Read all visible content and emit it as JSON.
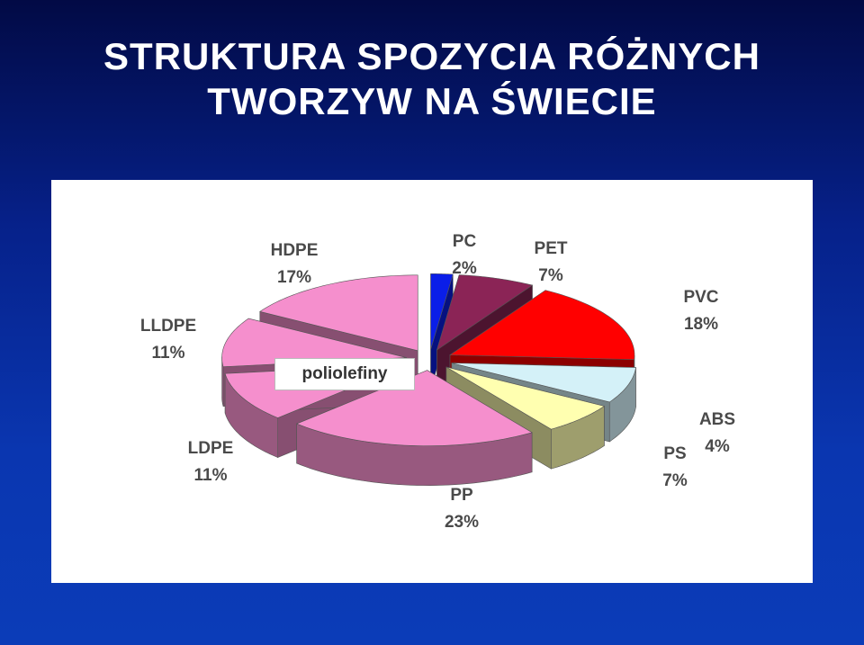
{
  "slide": {
    "title_line1": "STRUKTURA SPOZYCIA RÓŻNYCH",
    "title_line2": "TWORZYW NA ŚWIECIE"
  },
  "chart_data": {
    "type": "pie",
    "title": "",
    "group_label": "poliolefiny",
    "slices": [
      {
        "name": "PC",
        "value": 2,
        "label": "2%",
        "color": "#0a1ee8"
      },
      {
        "name": "PET",
        "value": 7,
        "label": "7%",
        "color": "#8b2456"
      },
      {
        "name": "PVC",
        "value": 18,
        "label": "18%",
        "color": "#ff0000"
      },
      {
        "name": "ABS",
        "value": 4,
        "label": "",
        "color": "#d4f1f8"
      },
      {
        "name": "ABS",
        "value": 4,
        "label": "4%",
        "color": "#d4f1f8"
      },
      {
        "name": "PS",
        "value": 7,
        "label": "7%",
        "color": "#ffffb0"
      },
      {
        "name": "PP",
        "value": 23,
        "label": "23%",
        "color": "#f58fcd"
      },
      {
        "name": "LDPE",
        "value": 11,
        "label": "11%",
        "color": "#f58fcd"
      },
      {
        "name": "LLDPE",
        "value": 11,
        "label": "11%",
        "color": "#f58fcd"
      },
      {
        "name": "HDPE",
        "value": 17,
        "label": "17%",
        "color": "#f58fcd"
      }
    ]
  }
}
